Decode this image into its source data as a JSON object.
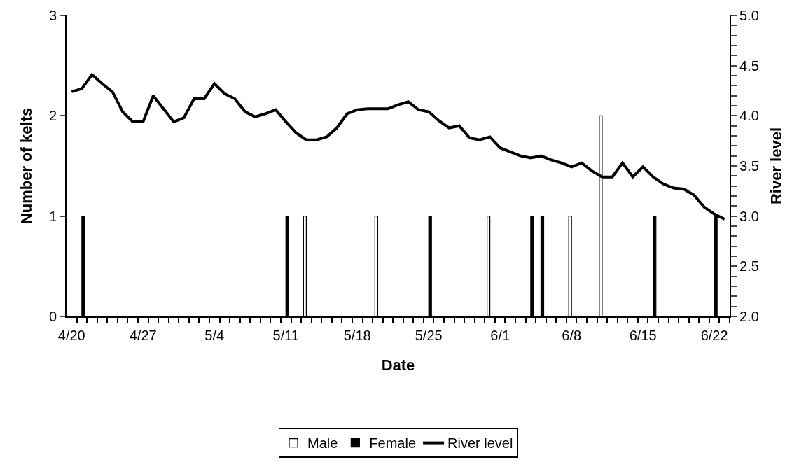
{
  "chart_data": {
    "type": "bar",
    "xlabel": "Date",
    "ylabel": "Number of kelts",
    "y2label": "River level",
    "categories": [
      "4/20",
      null,
      null,
      null,
      null,
      null,
      null,
      "4/27",
      null,
      null,
      null,
      null,
      null,
      null,
      "5/4",
      null,
      null,
      null,
      null,
      null,
      null,
      "5/11",
      null,
      null,
      null,
      null,
      null,
      null,
      "5/18",
      null,
      null,
      null,
      null,
      null,
      null,
      "5/25",
      null,
      null,
      null,
      null,
      null,
      null,
      "6/1",
      null,
      null,
      null,
      null,
      null,
      null,
      "6/8",
      null,
      null,
      null,
      null,
      null,
      null,
      "6/15",
      null,
      null,
      null,
      null,
      null,
      null,
      "6/22",
      null
    ],
    "series": [
      {
        "name": "Male",
        "color": "#ffffff",
        "values": [
          null,
          null,
          null,
          null,
          null,
          null,
          null,
          null,
          null,
          null,
          null,
          null,
          null,
          null,
          null,
          null,
          null,
          null,
          null,
          null,
          null,
          null,
          null,
          1,
          null,
          null,
          null,
          null,
          null,
          null,
          1,
          null,
          null,
          null,
          null,
          null,
          null,
          null,
          null,
          null,
          null,
          1,
          null,
          null,
          null,
          null,
          null,
          null,
          null,
          1,
          null,
          null,
          2,
          null,
          null,
          null,
          null,
          null,
          null,
          null,
          null,
          null,
          null,
          null,
          null
        ]
      },
      {
        "name": "Female",
        "color": "#000000",
        "values": [
          null,
          1,
          null,
          null,
          null,
          null,
          null,
          null,
          null,
          null,
          null,
          null,
          null,
          null,
          null,
          null,
          null,
          null,
          null,
          null,
          null,
          1,
          null,
          null,
          null,
          null,
          null,
          null,
          null,
          null,
          null,
          null,
          null,
          null,
          null,
          1,
          null,
          null,
          null,
          null,
          null,
          null,
          null,
          null,
          null,
          1,
          1,
          null,
          null,
          null,
          null,
          null,
          null,
          null,
          null,
          null,
          null,
          1,
          null,
          null,
          null,
          null,
          null,
          1,
          null
        ]
      },
      {
        "name": "River level",
        "type": "line",
        "axis": "y2",
        "color": "#000000",
        "values": [
          4.24,
          4.27,
          4.41,
          4.32,
          4.24,
          4.04,
          3.94,
          3.94,
          4.2,
          4.07,
          3.94,
          3.98,
          4.17,
          4.17,
          4.32,
          4.22,
          4.17,
          4.04,
          3.99,
          4.02,
          4.06,
          3.94,
          3.83,
          3.76,
          3.76,
          3.79,
          3.88,
          4.02,
          4.06,
          4.07,
          4.07,
          4.07,
          4.11,
          4.14,
          4.06,
          4.04,
          3.95,
          3.88,
          3.9,
          3.78,
          3.76,
          3.79,
          3.68,
          3.64,
          3.6,
          3.58,
          3.6,
          3.56,
          3.53,
          3.49,
          3.53,
          3.45,
          3.39,
          3.39,
          3.53,
          3.39,
          3.49,
          3.39,
          3.32,
          3.28,
          3.27,
          3.21,
          3.09,
          3.02,
          2.97
        ]
      }
    ],
    "ylim": [
      0,
      3
    ],
    "yticks": [
      0,
      1,
      2,
      3
    ],
    "y2lim": [
      2,
      5
    ],
    "y2ticks": [
      {
        "value": 2,
        "label": "2.0"
      },
      {
        "value": 2.1,
        "label": null
      },
      {
        "value": 2.2,
        "label": null
      },
      {
        "value": 2.3,
        "label": null
      },
      {
        "value": 2.4,
        "label": null
      },
      {
        "value": 2.5,
        "label": "2.5"
      },
      {
        "value": 2.6,
        "label": null
      },
      {
        "value": 2.7,
        "label": null
      },
      {
        "value": 2.8,
        "label": null
      },
      {
        "value": 2.9,
        "label": null
      },
      {
        "value": 3,
        "label": "3.0"
      },
      {
        "value": 3.1,
        "label": null
      },
      {
        "value": 3.2,
        "label": null
      },
      {
        "value": 3.3,
        "label": null
      },
      {
        "value": 3.4,
        "label": null
      },
      {
        "value": 3.5,
        "label": "3.5"
      },
      {
        "value": 3.6,
        "label": null
      },
      {
        "value": 3.7,
        "label": null
      },
      {
        "value": 3.8,
        "label": null
      },
      {
        "value": 3.9,
        "label": null
      },
      {
        "value": 4,
        "label": "4.0"
      },
      {
        "value": 4.1,
        "label": null
      },
      {
        "value": 4.2,
        "label": null
      },
      {
        "value": 4.3,
        "label": null
      },
      {
        "value": 4.4,
        "label": null
      },
      {
        "value": 4.5,
        "label": "4.5"
      },
      {
        "value": 4.6,
        "label": null
      },
      {
        "value": 4.7,
        "label": null
      },
      {
        "value": 4.8,
        "label": null
      },
      {
        "value": 4.9,
        "label": null
      },
      {
        "value": 5,
        "label": "5.0"
      }
    ],
    "grid": "y",
    "legend": "bottom",
    "marker": "none",
    "line_style": "solid"
  }
}
